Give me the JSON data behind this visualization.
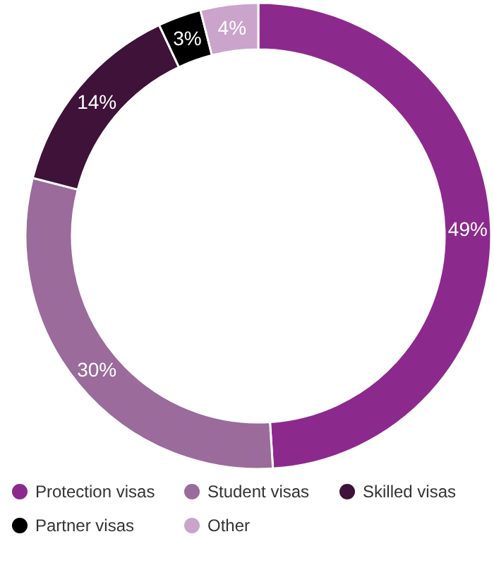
{
  "chart_data": {
    "type": "donut",
    "categories": [
      "Protection visas",
      "Student visas",
      "Skilled visas",
      "Partner visas",
      "Other"
    ],
    "values": [
      49,
      30,
      14,
      3,
      4
    ],
    "colors": [
      "#8b2a8c",
      "#9a6b9b",
      "#3e1239",
      "#000000",
      "#caa4cb"
    ],
    "value_labels": [
      "49%",
      "30%",
      "14%",
      "3%",
      "4%"
    ],
    "legend": "bottom"
  }
}
